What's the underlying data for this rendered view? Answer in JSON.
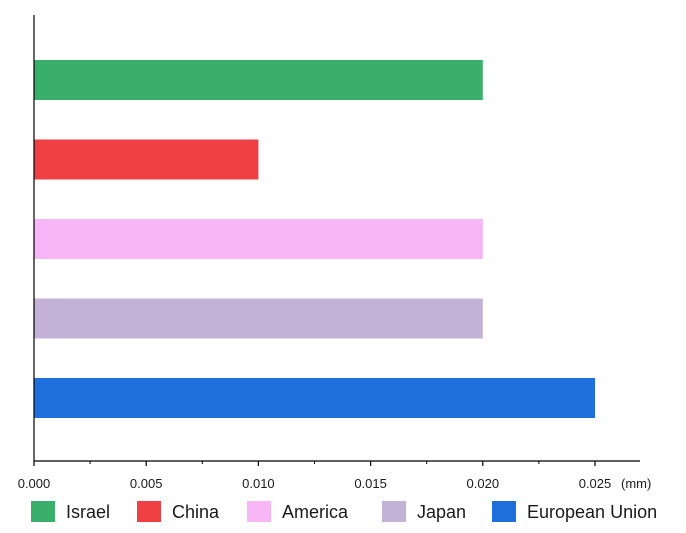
{
  "chart_data": {
    "type": "bar",
    "orientation": "horizontal",
    "categories": [
      "Israel",
      "China",
      "America",
      "Japan",
      "European Union"
    ],
    "values": [
      0.02,
      0.01,
      0.02,
      0.02,
      0.025
    ],
    "colors": [
      "#3aaf6b",
      "#ef4144",
      "#f9b6f6",
      "#c3b1d6",
      "#1f6fdc"
    ],
    "xlabel": "",
    "ylabel": "",
    "x_unit": "(mm)",
    "xlim": [
      0,
      0.027
    ],
    "x_ticks": [
      "0.000",
      "0.005",
      "0.010",
      "0.015",
      "0.020",
      "0.025"
    ],
    "x_tick_values": [
      0.0,
      0.005,
      0.01,
      0.015,
      0.02,
      0.025
    ],
    "grid": false,
    "legend": {
      "placement": "bottom",
      "entries": [
        "Israel",
        "China",
        "America",
        "Japan",
        "European Union"
      ]
    }
  }
}
